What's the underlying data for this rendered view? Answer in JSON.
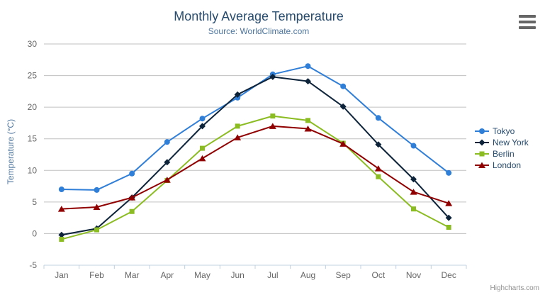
{
  "header": {
    "title": "Monthly Average Temperature",
    "subtitle": "Source: WorldClimate.com"
  },
  "export_menu": {
    "icon": "hamburger-icon"
  },
  "credits": {
    "label": "Highcharts.com"
  },
  "colors": {
    "title": "#274b6d",
    "subtitle": "#4d759e",
    "axis_label": "#666666",
    "axis_title": "#4d759e",
    "gridline": "#c0c0c0",
    "axis_line": "#c0d0e0",
    "legend_text": "#274b6d",
    "background": "#ffffff"
  },
  "chart_data": {
    "type": "line",
    "title": "Monthly Average Temperature",
    "subtitle": "Source: WorldClimate.com",
    "categories": [
      "Jan",
      "Feb",
      "Mar",
      "Apr",
      "May",
      "Jun",
      "Jul",
      "Aug",
      "Sep",
      "Oct",
      "Nov",
      "Dec"
    ],
    "series": [
      {
        "name": "Tokyo",
        "color": "#2f7ed8",
        "marker": "circle",
        "values": [
          7.0,
          6.9,
          9.5,
          14.5,
          18.2,
          21.5,
          25.2,
          26.5,
          23.3,
          18.3,
          13.9,
          9.6
        ]
      },
      {
        "name": "New York",
        "color": "#0d233a",
        "marker": "diamond",
        "values": [
          -0.2,
          0.8,
          5.7,
          11.3,
          17.0,
          22.0,
          24.8,
          24.1,
          20.1,
          14.1,
          8.6,
          2.5
        ]
      },
      {
        "name": "Berlin",
        "color": "#8bbc21",
        "marker": "square",
        "values": [
          -0.9,
          0.6,
          3.5,
          8.4,
          13.5,
          17.0,
          18.6,
          17.9,
          14.3,
          9.0,
          3.9,
          1.0
        ]
      },
      {
        "name": "London",
        "color": "#910000",
        "marker": "triangle",
        "values": [
          3.9,
          4.2,
          5.7,
          8.5,
          11.9,
          15.2,
          17.0,
          16.6,
          14.2,
          10.3,
          6.6,
          4.8
        ]
      }
    ],
    "xlabel": "",
    "ylabel": "Temperature (°C)",
    "ylim": [
      -5,
      30
    ],
    "ytick_interval": 5,
    "grid": true,
    "legend_position": "right"
  }
}
